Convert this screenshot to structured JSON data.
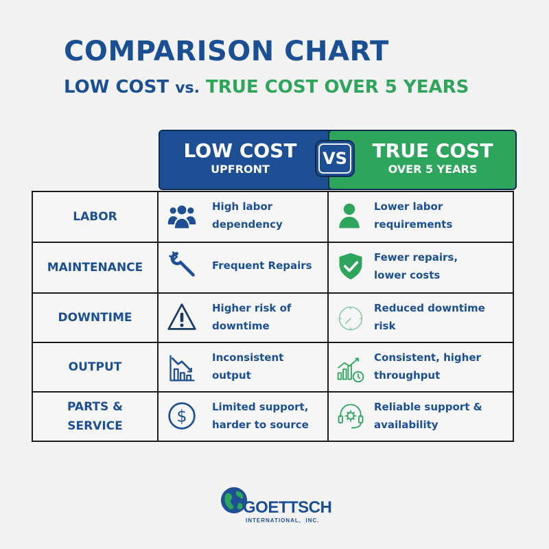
{
  "title": "COMPARISON CHART",
  "subtitle": {
    "part1": "LOW COST",
    "vs": "vs.",
    "part2": "TRUE COST OVER 5 YEARS"
  },
  "header": {
    "low": {
      "title": "LOW COST",
      "sub": "UPFRONT"
    },
    "vs": "VS",
    "true": {
      "title": "TRUE COST",
      "sub": "OVER 5 YEARS"
    }
  },
  "rows": [
    {
      "label": "LABOR",
      "low_icon": "people-group-icon",
      "low": "High labor\ndependency",
      "true_icon": "person-icon",
      "true": "Lower labor\nrequirements"
    },
    {
      "label": "MAINTENANCE",
      "low_icon": "wrench-icon",
      "low": "Frequent Repairs",
      "true_icon": "shield-check-icon",
      "true": "Fewer repairs,\nlower costs"
    },
    {
      "label": "DOWNTIME",
      "low_icon": "warning-triangle-icon",
      "low": "Higher risk of\ndowntime",
      "true_icon": "clock-icon",
      "true": "Reduced downtime\nrisk"
    },
    {
      "label": "OUTPUT",
      "low_icon": "declining-chart-icon",
      "low": "Inconsistent\noutput",
      "true_icon": "rising-chart-icon",
      "true": "Consistent, higher\nthroughput"
    },
    {
      "label": "PARTS &\nSERVICE",
      "low_icon": "dollar-circle-icon",
      "low": "Limited support,\nharder to source",
      "true_icon": "headset-gear-icon",
      "true": "Reliable support &\navailability"
    }
  ],
  "colors": {
    "blue": "#1a4f94",
    "green": "#2ea55c",
    "background": "#f4f3f4"
  },
  "logo": {
    "name": "GOETTSCH",
    "tagline": "INTERNATIONAL,  INC."
  }
}
